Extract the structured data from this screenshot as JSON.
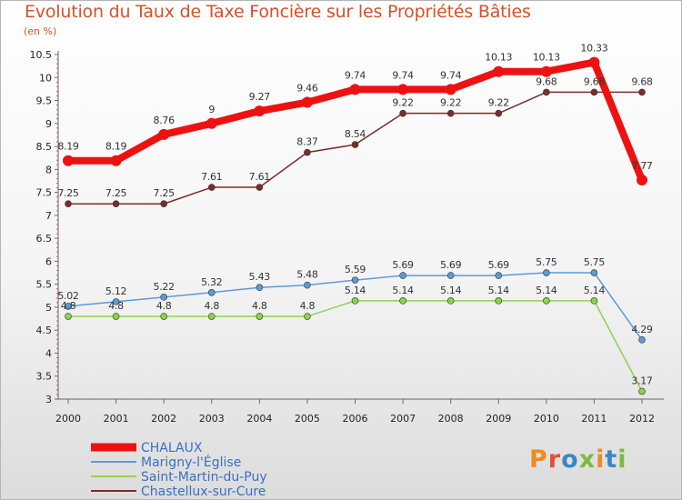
{
  "title": "Evolution du Taux de Taxe Foncière sur les Propriétés Bâties",
  "unit_label": "(en %)",
  "logo_text": "Proxiti",
  "chart_data": {
    "type": "line",
    "title": "Evolution du Taux de Taxe Foncière sur les Propriétés Bâties",
    "ylabel": "(en %)",
    "xlabel": "",
    "ylim": [
      3,
      10.5
    ],
    "yticks": [
      "3",
      "3.5",
      "4",
      "4.5",
      "5",
      "5.5",
      "6",
      "6.5",
      "7",
      "7.5",
      "8",
      "8.5",
      "9",
      "9.5",
      "10",
      "10.5"
    ],
    "categories": [
      "2000",
      "2001",
      "2002",
      "2003",
      "2004",
      "2005",
      "2006",
      "2007",
      "2008",
      "2009",
      "2010",
      "2011",
      "2012"
    ],
    "series": [
      {
        "name": "CHALAUX",
        "color": "#ee1111",
        "values": [
          8.19,
          8.19,
          8.76,
          9,
          9.27,
          9.46,
          9.74,
          9.74,
          9.74,
          10.13,
          10.13,
          10.33,
          7.77
        ],
        "labels": [
          "8.19",
          "8.19",
          "8.76",
          "9",
          "9.27",
          "9.46",
          "9.74",
          "9.74",
          "9.74",
          "10.13",
          "10.13",
          "10.33",
          "7.77"
        ]
      },
      {
        "name": "Marigny-l'Église",
        "color": "#5b9bd5",
        "values": [
          5.02,
          5.12,
          5.22,
          5.32,
          5.43,
          5.48,
          5.59,
          5.69,
          5.69,
          5.69,
          5.75,
          5.75,
          4.29
        ],
        "labels": [
          "5.02",
          "5.12",
          "5.22",
          "5.32",
          "5.43",
          "5.48",
          "5.59",
          "5.69",
          "5.69",
          "5.69",
          "5.75",
          "5.75",
          "4.29"
        ]
      },
      {
        "name": "Saint-Martin-du-Puy",
        "color": "#8fd14f",
        "values": [
          4.8,
          4.8,
          4.8,
          4.8,
          4.8,
          4.8,
          5.14,
          5.14,
          5.14,
          5.14,
          5.14,
          5.14,
          3.17
        ],
        "labels": [
          "4.8",
          "4.8",
          "4.8",
          "4.8",
          "4.8",
          "4.8",
          "5.14",
          "5.14",
          "5.14",
          "5.14",
          "5.14",
          "5.14",
          "3.17"
        ]
      },
      {
        "name": "Chastellux-sur-Cure",
        "color": "#7a2d2d",
        "values": [
          7.25,
          7.25,
          7.25,
          7.61,
          7.61,
          8.37,
          8.54,
          9.22,
          9.22,
          9.22,
          9.68,
          9.68,
          9.68
        ],
        "labels": [
          "7.25",
          "7.25",
          "7.25",
          "7.61",
          "7.61",
          "8.37",
          "8.54",
          "9.22",
          "9.22",
          "9.22",
          "9.68",
          "9.68",
          "9.68"
        ]
      }
    ],
    "legend": "bottom-left"
  }
}
